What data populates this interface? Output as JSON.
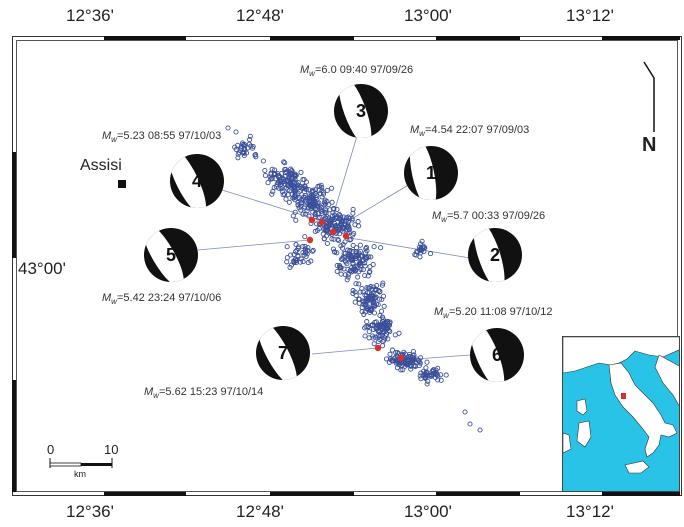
{
  "axes": {
    "top": [
      "12°36'",
      "12°48'",
      "13°00'",
      "13°12'"
    ],
    "bottom": [
      "12°36'",
      "12°48'",
      "13°00'",
      "13°12'"
    ],
    "left": "43°00'"
  },
  "north_label": "N",
  "town": "Assisi",
  "scale": {
    "zero": "0",
    "ten": "10",
    "unit": "km"
  },
  "events": [
    {
      "id": "1",
      "mw": "4.54",
      "time": "22:07",
      "date": "97/09/03"
    },
    {
      "id": "2",
      "mw": "5.7",
      "time": "00:33",
      "date": "97/09/26"
    },
    {
      "id": "3",
      "mw": "6.0",
      "time": "09:40",
      "date": "97/09/26"
    },
    {
      "id": "4",
      "mw": "5.23",
      "time": "08:55",
      "date": "97/10/03"
    },
    {
      "id": "5",
      "mw": "5.42",
      "time": "23:24",
      "date": "97/10/06"
    },
    {
      "id": "6",
      "mw": "5.20",
      "time": "11:08",
      "date": "97/10/12"
    },
    {
      "id": "7",
      "mw": "5.62",
      "time": "15:23",
      "date": "97/10/14"
    }
  ],
  "colors": {
    "sea": "#29c3e8",
    "land": "#ffffff",
    "epicenter": "#d9302a",
    "aftershock": "#3a4f9a",
    "beachball": "#111111"
  }
}
